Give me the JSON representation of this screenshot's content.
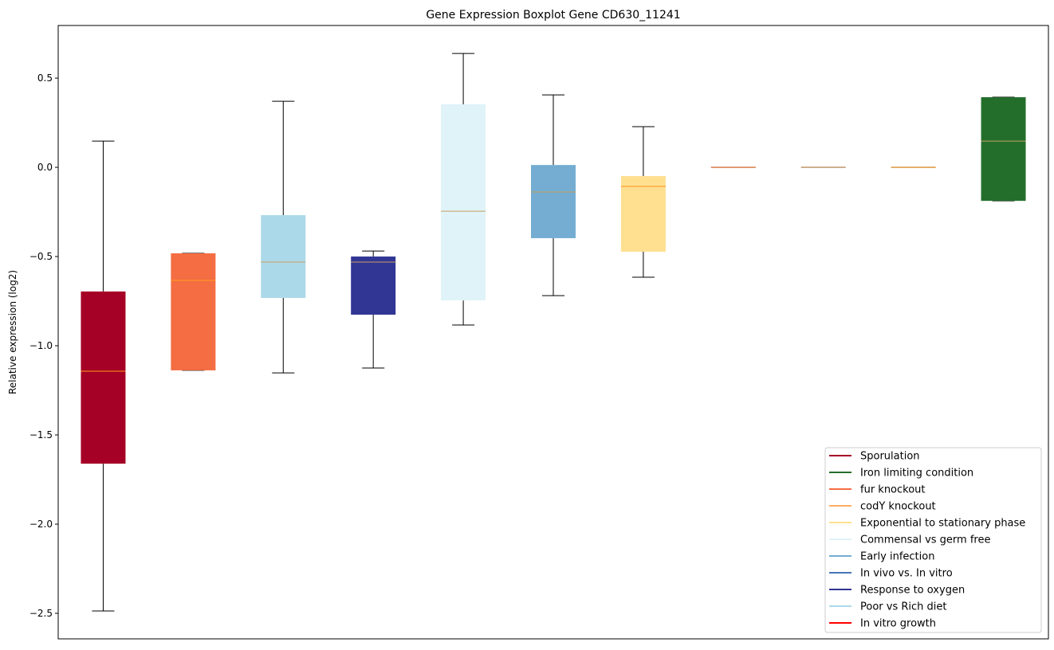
{
  "chart_data": {
    "type": "box",
    "title": "Gene Expression Boxplot Gene CD630_11241",
    "xlabel": "",
    "ylabel": "Relative expression (log2)",
    "ylim": [
      -2.643,
      0.795
    ],
    "yticks": [
      0.5,
      0.0,
      -0.5,
      -1.0,
      -1.5,
      -2.0,
      -2.5
    ],
    "ytick_labels": [
      "0.5",
      "0.0",
      "−0.5",
      "−1.0",
      "−1.5",
      "−2.0",
      "−2.5"
    ],
    "grid": false,
    "legend_position": "lower-right",
    "boxes": [
      {
        "color": "#a50026",
        "median_color": "#ff9f1a",
        "whislo": -2.487,
        "q1": -1.661,
        "med": -1.143,
        "q3": -0.696,
        "whishi": 0.147
      },
      {
        "color": "#f46d43",
        "median_color": "#ff9f1a",
        "whislo": -1.138,
        "q1": -1.138,
        "med": -0.634,
        "q3": -0.482,
        "whishi": -0.482
      },
      {
        "color": "#abd9e9",
        "median_color": "#c8a060",
        "whislo": -1.152,
        "q1": -0.732,
        "med": -0.531,
        "q3": -0.268,
        "whishi": 0.37
      },
      {
        "color": "#313695",
        "median_color": "#c8a060",
        "whislo": -1.125,
        "q1": -0.826,
        "med": -0.531,
        "q3": -0.5,
        "whishi": -0.469
      },
      {
        "color": "#e0f3f8",
        "median_color": "#c8a060",
        "whislo": -0.884,
        "q1": -0.746,
        "med": -0.246,
        "q3": 0.353,
        "whishi": 0.638
      },
      {
        "color": "#74add1",
        "median_color": "#c8a060",
        "whislo": -0.719,
        "q1": -0.397,
        "med": -0.138,
        "q3": 0.013,
        "whishi": 0.406
      },
      {
        "color": "#fee090",
        "median_color": "#ff8c1a",
        "whislo": -0.616,
        "q1": -0.473,
        "med": -0.107,
        "q3": -0.049,
        "whishi": 0.228
      },
      {
        "color": "#f46d43",
        "median_color": "#c8804a",
        "whislo": 0,
        "q1": 0,
        "med": 0,
        "q3": 0,
        "whishi": 0
      },
      {
        "color": "#fdae61",
        "median_color": "#a08a70",
        "whislo": 0,
        "q1": 0,
        "med": 0,
        "q3": 0,
        "whishi": 0
      },
      {
        "color": "#ff9f1a",
        "median_color": "#c89050",
        "whislo": 0,
        "q1": 0,
        "med": 0,
        "q3": 0,
        "whishi": 0
      },
      {
        "color": "#236e2b",
        "median_color": "#c8a060",
        "whislo": -0.188,
        "q1": -0.188,
        "med": 0.147,
        "q3": 0.393,
        "whishi": 0.393
      }
    ],
    "legend": [
      {
        "label": "Sporulation",
        "color": "#a50026"
      },
      {
        "label": "Iron limiting condition",
        "color": "#236e2b"
      },
      {
        "label": "fur knockout",
        "color": "#f46d43"
      },
      {
        "label": "codY knockout",
        "color": "#fdae61"
      },
      {
        "label": "Exponential to stationary phase",
        "color": "#fee090"
      },
      {
        "label": "Commensal vs germ free",
        "color": "#e0f3f8"
      },
      {
        "label": "Early infection",
        "color": "#74add1"
      },
      {
        "label": "In vivo vs. In vitro",
        "color": "#4575b4"
      },
      {
        "label": "Response to oxygen",
        "color": "#313695"
      },
      {
        "label": "Poor vs Rich diet",
        "color": "#abd9e9"
      },
      {
        "label": "In vitro growth",
        "color": "#ff0000"
      }
    ]
  }
}
